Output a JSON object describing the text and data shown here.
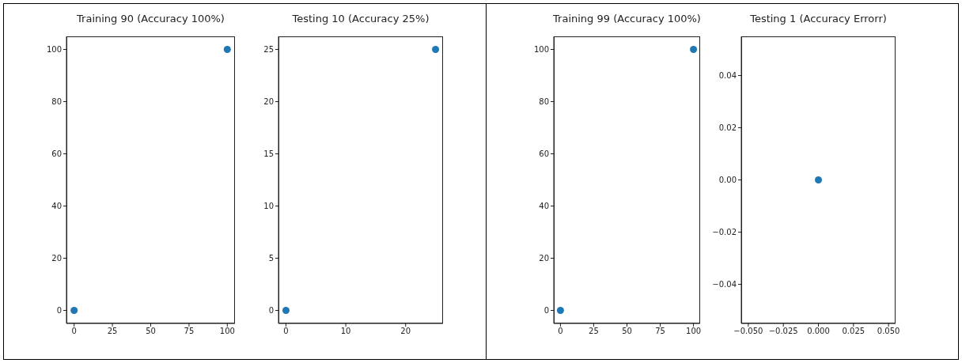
{
  "chart_data": [
    {
      "type": "scatter",
      "title": "Training 90 (Accuracy 100%)",
      "x": [
        0,
        100
      ],
      "values": [
        0,
        100
      ],
      "color": "#1f77b4",
      "marker": "circle",
      "grid": false,
      "xlim": [
        -5,
        105
      ],
      "ylim": [
        -5,
        105
      ],
      "xticks": [
        0,
        25,
        50,
        75,
        100
      ],
      "yticks": [
        0,
        20,
        40,
        60,
        80,
        100
      ]
    },
    {
      "type": "scatter",
      "title": "Testing 10 (Accuracy 25%)",
      "x": [
        0,
        25
      ],
      "values": [
        0,
        25
      ],
      "color": "#1f77b4",
      "marker": "circle",
      "grid": false,
      "xlim": [
        -1.25,
        26.25
      ],
      "ylim": [
        -1.25,
        26.25
      ],
      "xticks": [
        0,
        10,
        20
      ],
      "yticks": [
        0,
        5,
        10,
        15,
        20,
        25
      ]
    },
    {
      "type": "scatter",
      "title": "Training 99 (Accuracy 100%)",
      "x": [
        0,
        100
      ],
      "values": [
        0,
        100
      ],
      "color": "#1f77b4",
      "marker": "circle",
      "grid": false,
      "xlim": [
        -5,
        105
      ],
      "ylim": [
        -5,
        105
      ],
      "xticks": [
        0,
        25,
        50,
        75,
        100
      ],
      "yticks": [
        0,
        20,
        40,
        60,
        80,
        100
      ]
    },
    {
      "type": "scatter",
      "title": "Testing 1 (Accuracy Errorr)",
      "x": [
        0
      ],
      "values": [
        0
      ],
      "color": "#1f77b4",
      "marker": "circle",
      "grid": false,
      "xlim": [
        -0.055,
        0.055
      ],
      "ylim": [
        -0.055,
        0.055
      ],
      "xticks": [
        {
          "value": -0.05,
          "label": "−0.050"
        },
        {
          "value": -0.025,
          "label": "−0.025"
        },
        {
          "value": 0,
          "label": "0.000"
        },
        {
          "value": 0.025,
          "label": "0.025"
        },
        {
          "value": 0.05,
          "label": "0.050"
        }
      ],
      "yticks": [
        {
          "value": -0.04,
          "label": "−0.04"
        },
        {
          "value": -0.02,
          "label": "−0.02"
        },
        {
          "value": 0,
          "label": "0.00"
        },
        {
          "value": 0.02,
          "label": "0.02"
        },
        {
          "value": 0.04,
          "label": "0.04"
        }
      ]
    }
  ]
}
